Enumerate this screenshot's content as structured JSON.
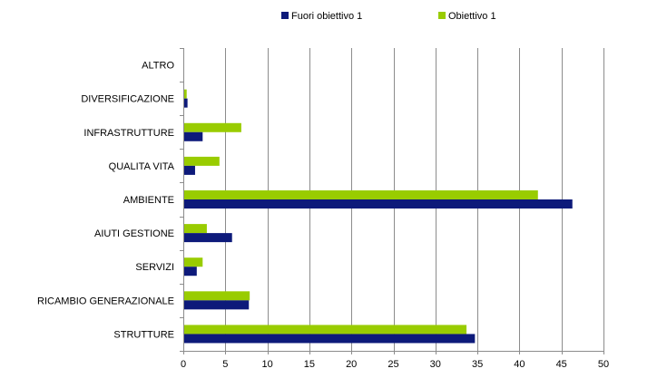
{
  "chart_data": {
    "type": "bar",
    "orientation": "horizontal",
    "categories": [
      "ALTRO",
      "DIVERSIFICAZIONE",
      "INFRASTRUTTURE",
      "QUALITA VITA",
      "AMBIENTE",
      "AIUTI GESTIONE",
      "SERVIZI",
      "RICAMBIO GENERAZIONALE",
      "STRUTTURE"
    ],
    "series": [
      {
        "name": "Fuori obiettivo 1",
        "color": "#0d1a7a",
        "values": [
          0,
          0.5,
          2.3,
          1.4,
          46.3,
          5.8,
          1.6,
          7.8,
          34.7
        ]
      },
      {
        "name": "Obiettivo 1",
        "color": "#99cc00",
        "values": [
          0,
          0.4,
          6.9,
          4.3,
          42.2,
          2.8,
          2.3,
          7.9,
          33.7
        ]
      }
    ],
    "xlim": [
      0,
      50
    ],
    "xticks": [
      "0",
      "5",
      "10",
      "15",
      "20",
      "25",
      "30",
      "35",
      "40",
      "45",
      "50"
    ],
    "grid": true,
    "legend_position": "top",
    "title": "",
    "xlabel": "",
    "ylabel": ""
  }
}
